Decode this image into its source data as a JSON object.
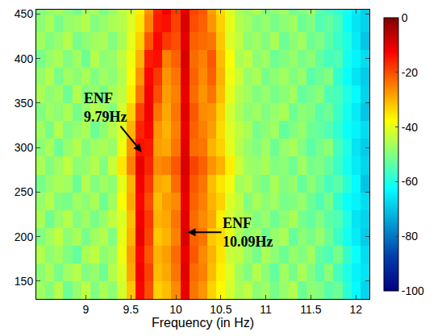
{
  "chart_data": {
    "type": "heatmap",
    "x_label": "Frequency (in Hz)",
    "x": [
      8.5,
      8.6,
      8.7,
      8.8,
      8.9,
      9.0,
      9.1,
      9.2,
      9.3,
      9.4,
      9.5,
      9.6,
      9.7,
      9.8,
      9.9,
      10.0,
      10.1,
      10.2,
      10.3,
      10.4,
      10.5,
      10.6,
      10.7,
      10.8,
      10.9,
      11.0,
      11.1,
      11.2,
      11.3,
      11.4,
      11.5,
      11.6,
      11.7,
      11.8,
      11.9,
      12.0,
      12.1
    ],
    "y": [
      140,
      160,
      180,
      200,
      220,
      240,
      260,
      280,
      300,
      320,
      340,
      360,
      380,
      400,
      420,
      440,
      460
    ],
    "z": [
      [
        -47,
        -50,
        -45,
        -52,
        -48,
        -44,
        -50,
        -46,
        -49,
        -42,
        -32,
        -13,
        -20,
        -33,
        -31,
        -26,
        -11,
        -24,
        -27,
        -33,
        -37,
        -42,
        -46,
        -44,
        -49,
        -47,
        -51,
        -48,
        -45,
        -52,
        -49,
        -50,
        -54,
        -52,
        -59,
        -63,
        -68
      ],
      [
        -49,
        -46,
        -51,
        -47,
        -45,
        -50,
        -48,
        -52,
        -45,
        -41,
        -29,
        -12,
        -19,
        -31,
        -29,
        -24,
        -10,
        -23,
        -25,
        -31,
        -36,
        -41,
        -47,
        -50,
        -45,
        -49,
        -53,
        -47,
        -51,
        -46,
        -50,
        -54,
        -49,
        -56,
        -60,
        -64,
        -66
      ],
      [
        -45,
        -49,
        -47,
        -50,
        -53,
        -46,
        -44,
        -49,
        -47,
        -39,
        -28,
        -13,
        -21,
        -30,
        -28,
        -23,
        -11,
        -21,
        -26,
        -30,
        -35,
        -43,
        -44,
        -48,
        -51,
        -46,
        -49,
        -52,
        -48,
        -50,
        -47,
        -53,
        -55,
        -51,
        -58,
        -62,
        -67
      ],
      [
        -50,
        -47,
        -44,
        -49,
        -46,
        -51,
        -47,
        -45,
        -50,
        -40,
        -30,
        -11,
        -19,
        -32,
        -30,
        -25,
        -9,
        -22,
        -24,
        -32,
        -34,
        -40,
        -46,
        -49,
        -47,
        -52,
        -48,
        -46,
        -53,
        -49,
        -51,
        -48,
        -52,
        -57,
        -61,
        -65,
        -69
      ],
      [
        -46,
        -52,
        -48,
        -45,
        -50,
        -47,
        -51,
        -48,
        -44,
        -41,
        -31,
        -12,
        -18,
        -30,
        -29,
        -24,
        -10,
        -23,
        -26,
        -29,
        -36,
        -42,
        -45,
        -47,
        -50,
        -48,
        -52,
        -49,
        -46,
        -51,
        -53,
        -50,
        -54,
        -55,
        -60,
        -66,
        -68
      ],
      [
        -48,
        -45,
        -50,
        -51,
        -47,
        -49,
        -46,
        -52,
        -47,
        -38,
        -29,
        -13,
        -20,
        -31,
        -28,
        -26,
        -11,
        -22,
        -25,
        -30,
        -33,
        -41,
        -44,
        -50,
        -46,
        -49,
        -47,
        -51,
        -50,
        -48,
        -52,
        -55,
        -51,
        -58,
        -62,
        -64,
        -67
      ],
      [
        -51,
        -48,
        -46,
        -47,
        -52,
        -45,
        -50,
        -47,
        -49,
        -40,
        -30,
        -12,
        -18,
        -29,
        -30,
        -23,
        -10,
        -21,
        -24,
        -31,
        -35,
        -39,
        -47,
        -45,
        -49,
        -51,
        -46,
        -50,
        -48,
        -53,
        -49,
        -52,
        -56,
        -54,
        -59,
        -63,
        -70
      ],
      [
        -46,
        -50,
        -47,
        -44,
        -49,
        -48,
        -45,
        -50,
        -43,
        -35,
        -25,
        -11,
        -16,
        -26,
        -25,
        -21,
        -9,
        -19,
        -22,
        -27,
        -30,
        -36,
        -43,
        -47,
        -48,
        -46,
        -50,
        -49,
        -52,
        -47,
        -51,
        -50,
        -53,
        -57,
        -61,
        -65,
        -68
      ],
      [
        -49,
        -46,
        -52,
        -48,
        -45,
        -50,
        -47,
        -46,
        -48,
        -39,
        -27,
        -14,
        -15,
        -28,
        -29,
        -24,
        -10,
        -23,
        -24,
        -30,
        -33,
        -40,
        -45,
        -48,
        -50,
        -47,
        -52,
        -48,
        -46,
        -50,
        -54,
        -51,
        -49,
        -56,
        -60,
        -66,
        -69
      ],
      [
        -47,
        -51,
        -45,
        -50,
        -48,
        -46,
        -52,
        -49,
        -45,
        -41,
        -30,
        -16,
        -13,
        -27,
        -30,
        -25,
        -11,
        -22,
        -25,
        -28,
        -34,
        -41,
        -44,
        -46,
        -51,
        -49,
        -47,
        -53,
        -50,
        -48,
        -52,
        -53,
        -55,
        -58,
        -62,
        -64,
        -67
      ],
      [
        -50,
        -47,
        -49,
        -46,
        -51,
        -48,
        -45,
        -47,
        -50,
        -42,
        -33,
        -19,
        -12,
        -24,
        -29,
        -24,
        -10,
        -21,
        -26,
        -27,
        -33,
        -42,
        -46,
        -49,
        -47,
        -50,
        -48,
        -46,
        -52,
        -49,
        -50,
        -54,
        -52,
        -57,
        -61,
        -65,
        -70
      ],
      [
        -46,
        -49,
        -47,
        -52,
        -45,
        -50,
        -48,
        -51,
        -46,
        -44,
        -36,
        -24,
        -12,
        -20,
        -28,
        -25,
        -11,
        -23,
        -27,
        -24,
        -31,
        -40,
        -45,
        -47,
        -50,
        -48,
        -51,
        -49,
        -47,
        -53,
        -51,
        -49,
        -55,
        -56,
        -60,
        -63,
        -68
      ],
      [
        -48,
        -45,
        -51,
        -47,
        -49,
        -46,
        -50,
        -47,
        -49,
        -45,
        -38,
        -27,
        -13,
        -18,
        -27,
        -24,
        -10,
        -22,
        -26,
        -22,
        -30,
        -39,
        -43,
        -48,
        -46,
        -51,
        -49,
        -47,
        -50,
        -48,
        -54,
        -52,
        -50,
        -58,
        -62,
        -66,
        -69
      ],
      [
        -51,
        -48,
        -46,
        -50,
        -47,
        -52,
        -45,
        -49,
        -48,
        -44,
        -39,
        -30,
        -15,
        -14,
        -25,
        -22,
        -9,
        -23,
        -25,
        -21,
        -31,
        -38,
        -46,
        -44,
        -49,
        -47,
        -52,
        -50,
        -48,
        -51,
        -49,
        -53,
        -56,
        -55,
        -61,
        -64,
        -67
      ],
      [
        -47,
        -50,
        -48,
        -45,
        -51,
        -49,
        -47,
        -46,
        -50,
        -46,
        -40,
        -33,
        -21,
        -13,
        -18,
        -20,
        -10,
        -22,
        -23,
        -24,
        -32,
        -41,
        -44,
        -49,
        -47,
        -50,
        -46,
        -52,
        -49,
        -47,
        -52,
        -50,
        -54,
        -57,
        -60,
        -65,
        -70
      ],
      [
        -49,
        -46,
        -51,
        -48,
        -47,
        -45,
        -50,
        -48,
        -46,
        -45,
        -41,
        -35,
        -25,
        -15,
        -14,
        -19,
        -9,
        -20,
        -22,
        -27,
        -33,
        -40,
        -45,
        -47,
        -50,
        -48,
        -51,
        -49,
        -47,
        -52,
        -50,
        -55,
        -53,
        -56,
        -62,
        -66,
        -68
      ],
      [
        -50,
        -48,
        -46,
        -49,
        -52,
        -47,
        -46,
        -51,
        -48,
        -44,
        -42,
        -36,
        -27,
        -16,
        -12,
        -18,
        -10,
        -19,
        -21,
        -28,
        -34,
        -41,
        -46,
        -48,
        -45,
        -50,
        -49,
        -47,
        -52,
        -50,
        -48,
        -54,
        -56,
        -58,
        -61,
        -65,
        -69
      ]
    ],
    "xlim": [
      8.45,
      12.15
    ],
    "xticks": [
      9,
      9.5,
      10,
      10.5,
      11,
      11.5,
      12
    ],
    "ylim": [
      130,
      455
    ],
    "yticks": [
      150,
      200,
      250,
      300,
      350,
      400,
      450
    ],
    "colorbar": {
      "range": [
        -100,
        0
      ],
      "ticks": [
        -100,
        -80,
        -60,
        -40,
        -20,
        0
      ]
    },
    "annotations": [
      {
        "lines": [
          "ENF",
          "9.79Hz"
        ],
        "x": 9.62,
        "y": 295
      },
      {
        "lines": [
          "ENF",
          "10.09Hz"
        ],
        "x": 10.13,
        "y": 205
      }
    ]
  }
}
